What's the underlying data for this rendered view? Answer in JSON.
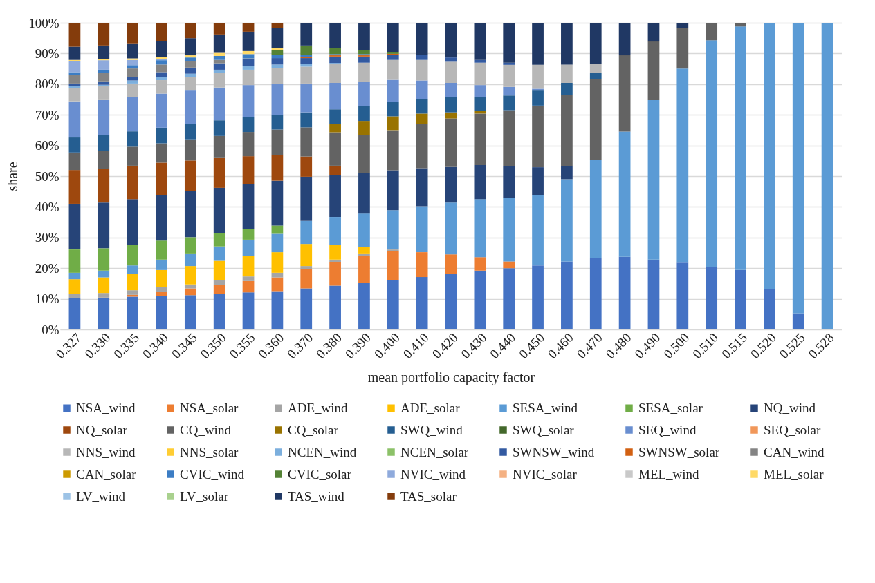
{
  "chart_data": {
    "type": "bar",
    "stacked": true,
    "xlabel": "mean portfolio capacity factor",
    "ylabel": "share",
    "categories": [
      "0.327",
      "0.330",
      "0.335",
      "0.340",
      "0.345",
      "0.350",
      "0.355",
      "0.360",
      "0.370",
      "0.380",
      "0.390",
      "0.400",
      "0.410",
      "0.420",
      "0.430",
      "0.440",
      "0.450",
      "0.460",
      "0.470",
      "0.480",
      "0.490",
      "0.500",
      "0.510",
      "0.515",
      "0.520",
      "0.525",
      "0.528"
    ],
    "ylim": [
      0,
      100
    ],
    "yticks": [
      {
        "value": 0,
        "label": "0%"
      },
      {
        "value": 10,
        "label": "10%"
      },
      {
        "value": 20,
        "label": "20%"
      },
      {
        "value": 30,
        "label": "30%"
      },
      {
        "value": 40,
        "label": "40%"
      },
      {
        "value": 50,
        "label": "50%"
      },
      {
        "value": 60,
        "label": "60%"
      },
      {
        "value": 70,
        "label": "70%"
      },
      {
        "value": 80,
        "label": "80%"
      },
      {
        "value": 90,
        "label": "90%"
      },
      {
        "value": 100,
        "label": "100%"
      }
    ],
    "grid": "y",
    "legend": "bottom",
    "series": [
      {
        "name": "NSA_wind",
        "color": "#4472c4",
        "values": [
          10.2,
          10.2,
          10.7,
          11.0,
          11.2,
          11.7,
          12.1,
          12.5,
          13.4,
          14.3,
          15.1,
          16.2,
          17.1,
          18.2,
          19.2,
          20.0,
          20.9,
          22.2,
          23.3,
          23.7,
          22.8,
          21.8,
          20.3,
          19.4,
          13.2,
          5.3,
          0
        ]
      },
      {
        "name": "NSA_solar",
        "color": "#ed7d31",
        "values": [
          0,
          0.2,
          0.6,
          1.3,
          2.2,
          2.9,
          3.7,
          4.5,
          6.2,
          7.7,
          9.0,
          9.4,
          8.1,
          6.3,
          4.4,
          2.2,
          0,
          0,
          0,
          0,
          0,
          0,
          0,
          0,
          0,
          0,
          0
        ]
      },
      {
        "name": "ADE_wind",
        "color": "#a5a5a5",
        "values": [
          1.5,
          1.5,
          1.5,
          1.5,
          1.3,
          1.4,
          1.5,
          1.5,
          1.1,
          0.8,
          0.7,
          0.5,
          0,
          0,
          0,
          0,
          0,
          0,
          0,
          0,
          0,
          0,
          0,
          0,
          0,
          0,
          0
        ]
      },
      {
        "name": "ADE_solar",
        "color": "#ffc000",
        "values": [
          4.7,
          5.1,
          5.3,
          5.6,
          6.0,
          6.4,
          6.6,
          6.7,
          7.2,
          4.7,
          2.2,
          0,
          0,
          0,
          0,
          0,
          0,
          0,
          0,
          0,
          0,
          0,
          0,
          0,
          0,
          0,
          0
        ]
      },
      {
        "name": "SESA_wind",
        "color": "#5b9bd5",
        "values": [
          2.1,
          2.2,
          2.8,
          3.4,
          4.1,
          4.7,
          5.4,
          6.0,
          7.5,
          9.2,
          10.8,
          12.8,
          15.0,
          16.9,
          18.9,
          20.7,
          22.9,
          26.8,
          32.0,
          40.8,
          52.0,
          63.3,
          74.0,
          79.4,
          86.8,
          94.7,
          100
        ]
      },
      {
        "name": "SESA_solar",
        "color": "#70ad47",
        "values": [
          7.6,
          7.3,
          6.7,
          6.2,
          5.3,
          4.4,
          3.6,
          2.7,
          0,
          0,
          0,
          0,
          0,
          0,
          0,
          0,
          0,
          0,
          0,
          0,
          0,
          0,
          0,
          0,
          0,
          0,
          0
        ]
      },
      {
        "name": "NQ_wind",
        "color": "#264478",
        "values": [
          14.9,
          14.9,
          14.9,
          14.8,
          15.0,
          14.7,
          14.6,
          14.6,
          14.4,
          13.7,
          13.3,
          13.0,
          12.4,
          11.6,
          11.1,
          10.3,
          9.1,
          4.4,
          0,
          0,
          0,
          0,
          0,
          0,
          0,
          0,
          0
        ]
      },
      {
        "name": "NQ_solar",
        "color": "#9e480e",
        "values": [
          11.0,
          11.0,
          10.9,
          10.6,
          10.0,
          9.7,
          9.0,
          8.3,
          6.6,
          3.0,
          0,
          0,
          0,
          0,
          0,
          0,
          0,
          0,
          0,
          0,
          0,
          0,
          0,
          0,
          0,
          0,
          0
        ]
      },
      {
        "name": "CQ_wind",
        "color": "#636363",
        "values": [
          5.7,
          5.9,
          6.2,
          6.3,
          6.9,
          7.2,
          7.9,
          8.4,
          9.5,
          10.9,
          12.2,
          13.1,
          14.5,
          15.8,
          16.8,
          18.3,
          20.1,
          23.1,
          26.4,
          24.9,
          19.1,
          13.2,
          5.7,
          1.2,
          0,
          0,
          0
        ]
      },
      {
        "name": "CQ_solar",
        "color": "#997300",
        "values": [
          0,
          0,
          0,
          0,
          0,
          0,
          0,
          0,
          0,
          2.8,
          4.7,
          4.5,
          3.3,
          2.0,
          0.8,
          0,
          0,
          0,
          0,
          0,
          0,
          0,
          0,
          0,
          0,
          0,
          0
        ]
      },
      {
        "name": "SWQ_wind",
        "color": "#255e91",
        "values": [
          4.9,
          5.0,
          5.0,
          5.1,
          5.0,
          5.1,
          4.9,
          4.8,
          4.9,
          4.7,
          4.9,
          4.7,
          4.8,
          4.9,
          4.7,
          4.8,
          4.9,
          3.9,
          1.9,
          0,
          0,
          0,
          0,
          0,
          0,
          0,
          0
        ]
      },
      {
        "name": "SWQ_solar",
        "color": "#43682b",
        "values": [
          0,
          0,
          0,
          0,
          0,
          0,
          0,
          0,
          0,
          0,
          0,
          0,
          0,
          0,
          0,
          0,
          0,
          0,
          0,
          0,
          0,
          0,
          0,
          0,
          0,
          0,
          0
        ]
      },
      {
        "name": "SEQ_wind",
        "color": "#698ed0",
        "values": [
          11.8,
          11.5,
          11.3,
          11.1,
          10.9,
          10.7,
          10.4,
          10.0,
          9.4,
          8.6,
          7.9,
          7.2,
          6.0,
          4.7,
          3.8,
          2.8,
          0.6,
          0,
          0,
          0,
          0,
          0,
          0,
          0,
          0,
          0,
          0
        ]
      },
      {
        "name": "SEQ_solar",
        "color": "#f1975a",
        "values": [
          0,
          0,
          0,
          0,
          0,
          0,
          0,
          0,
          0,
          0,
          0,
          0,
          0,
          0,
          0,
          0,
          0,
          0,
          0,
          0,
          0,
          0,
          0,
          0,
          0,
          0,
          0
        ]
      },
      {
        "name": "NNS_wind",
        "color": "#b7b7b7",
        "values": [
          4.3,
          4.5,
          4.3,
          4.4,
          4.5,
          4.7,
          5.0,
          5.3,
          5.5,
          6.2,
          6.2,
          6.5,
          6.7,
          6.9,
          7.3,
          7.2,
          7.8,
          6.0,
          3.0,
          0,
          0,
          0,
          0,
          0,
          0,
          0,
          0
        ]
      },
      {
        "name": "NNS_solar",
        "color": "#ffcd33",
        "values": [
          0,
          0,
          0,
          0,
          0,
          0,
          0,
          0,
          0,
          0,
          0,
          0,
          0,
          0,
          0,
          0,
          0,
          0,
          0,
          0,
          0,
          0,
          0,
          0,
          0,
          0,
          0
        ]
      },
      {
        "name": "NCEN_wind",
        "color": "#7cafdd",
        "values": [
          0.6,
          0.5,
          1.0,
          1.0,
          1.0,
          1.1,
          1.1,
          1.1,
          0.9,
          0.3,
          0,
          0,
          0,
          0,
          0,
          0,
          0,
          0,
          0,
          0,
          0,
          0,
          0,
          0,
          0,
          0,
          0
        ]
      },
      {
        "name": "NCEN_solar",
        "color": "#8cc168",
        "values": [
          0,
          0,
          0,
          0,
          0,
          0,
          0,
          0,
          0,
          0,
          0,
          0,
          0,
          0,
          0,
          0,
          0,
          0,
          0,
          0,
          0,
          0,
          0,
          0,
          0,
          0,
          0
        ]
      },
      {
        "name": "SWNSW_wind",
        "color": "#335aa1",
        "values": [
          0.9,
          1.1,
          1.2,
          1.6,
          2.0,
          2.1,
          2.3,
          2.1,
          1.9,
          2.1,
          2.0,
          1.7,
          1.7,
          1.4,
          0.9,
          0.7,
          0,
          0,
          0,
          0,
          0,
          0,
          0,
          0,
          0,
          0,
          0
        ]
      },
      {
        "name": "SWNSW_solar",
        "color": "#d26012",
        "values": [
          0,
          0,
          0,
          0,
          0,
          0,
          0,
          0,
          0.4,
          0.4,
          0.4,
          0.3,
          0,
          0,
          0,
          0,
          0,
          0,
          0,
          0,
          0,
          0,
          0,
          0,
          0,
          0,
          0
        ]
      },
      {
        "name": "CAN_wind",
        "color": "#848484",
        "values": [
          2.7,
          2.7,
          2.7,
          2.5,
          2.0,
          1.1,
          0.3,
          0,
          0,
          0,
          0,
          0,
          0,
          0,
          0,
          0,
          0,
          0,
          0,
          0,
          0,
          0,
          0,
          0,
          0,
          0,
          0
        ]
      },
      {
        "name": "CAN_solar",
        "color": "#cc9a00",
        "values": [
          0,
          0,
          0,
          0,
          0,
          0,
          0,
          0,
          0,
          0,
          0,
          0,
          0,
          0,
          0,
          0,
          0,
          0,
          0,
          0,
          0,
          0,
          0,
          0,
          0,
          0,
          0
        ]
      },
      {
        "name": "CVIC_wind",
        "color": "#3c7dc4",
        "values": [
          1.0,
          1.1,
          1.1,
          1.4,
          1.3,
          1.3,
          1.4,
          1.1,
          0.7,
          0.4,
          0.4,
          0,
          0,
          0,
          0,
          0,
          0,
          0,
          0,
          0,
          0,
          0,
          0,
          0,
          0,
          0,
          0
        ]
      },
      {
        "name": "CVIC_solar",
        "color": "#548235",
        "values": [
          0,
          0,
          0,
          0,
          0,
          0,
          0,
          1.5,
          3.0,
          2.0,
          1.3,
          0.6,
          0,
          0,
          0,
          0,
          0,
          0,
          0,
          0,
          0,
          0,
          0,
          0,
          0,
          0,
          0
        ]
      },
      {
        "name": "NVIC_wind",
        "color": "#8faadc",
        "values": [
          3.6,
          3.1,
          1.7,
          0.5,
          0,
          0,
          0,
          0,
          0,
          0,
          0,
          0,
          0,
          0,
          0,
          0,
          0,
          0,
          0,
          0,
          0,
          0,
          0,
          0,
          0,
          0,
          0
        ]
      },
      {
        "name": "NVIC_solar",
        "color": "#f4b183",
        "values": [
          0,
          0,
          0,
          0,
          0,
          0,
          0,
          0,
          0,
          0,
          0,
          0,
          0,
          0,
          0,
          0,
          0,
          0,
          0,
          0,
          0,
          0,
          0,
          0,
          0,
          0,
          0
        ]
      },
      {
        "name": "MEL_wind",
        "color": "#c9c9c9",
        "values": [
          0,
          0,
          0,
          0,
          0,
          0,
          0,
          0,
          0,
          0,
          0,
          0,
          0,
          0,
          0,
          0,
          0,
          0,
          0,
          0,
          0,
          0,
          0,
          0,
          0,
          0,
          0
        ]
      },
      {
        "name": "MEL_solar",
        "color": "#ffd966",
        "values": [
          0.4,
          0.3,
          0.5,
          0.6,
          0.7,
          1.0,
          1.0,
          0.6,
          0,
          0,
          0,
          0,
          0,
          0,
          0,
          0,
          0,
          0,
          0,
          0,
          0,
          0,
          0,
          0,
          0,
          0,
          0
        ]
      },
      {
        "name": "LV_wind",
        "color": "#9dc3e6",
        "values": [
          0,
          0,
          0,
          0,
          0,
          0,
          0,
          0,
          0,
          0,
          0,
          0,
          0,
          0,
          0,
          0,
          0,
          0,
          0,
          0,
          0,
          0,
          0,
          0,
          0,
          0,
          0
        ]
      },
      {
        "name": "LV_solar",
        "color": "#a9d18e",
        "values": [
          0,
          0,
          0,
          0,
          0,
          0,
          0,
          0,
          0,
          0,
          0,
          0,
          0,
          0,
          0,
          0,
          0,
          0,
          0,
          0,
          0,
          0,
          0,
          0,
          0,
          0,
          0
        ]
      },
      {
        "name": "TAS_wind",
        "color": "#203864",
        "values": [
          4.3,
          4.5,
          4.9,
          5.2,
          5.6,
          6.0,
          6.3,
          6.7,
          7.4,
          8.2,
          8.9,
          9.5,
          10.4,
          11.3,
          12.1,
          13.0,
          13.7,
          13.6,
          13.4,
          10.6,
          6.1,
          1.7,
          0,
          0,
          0,
          0,
          0
        ]
      },
      {
        "name": "TAS_solar",
        "color": "#843c0c",
        "values": [
          7.8,
          7.4,
          6.7,
          5.9,
          5.0,
          3.8,
          2.9,
          1.6,
          0,
          0,
          0,
          0,
          0,
          0,
          0,
          0,
          0,
          0,
          0,
          0,
          0,
          0,
          0,
          0,
          0,
          0,
          0
        ]
      }
    ]
  }
}
